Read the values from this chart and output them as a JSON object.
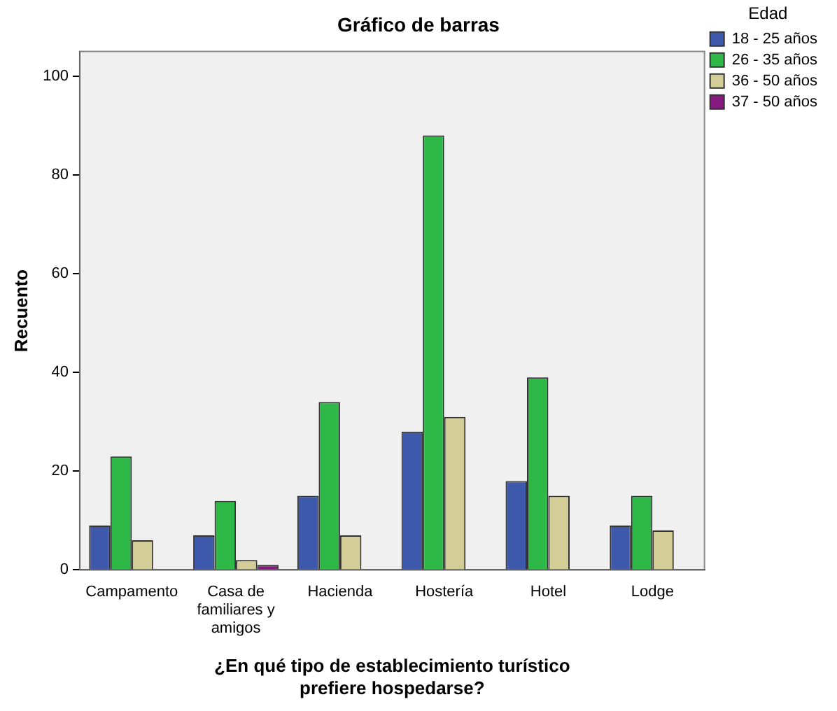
{
  "chart_data": {
    "type": "bar",
    "title": "Gráfico de barras",
    "xlabel": "¿En qué tipo de establecimiento turístico prefiere hospedarse?",
    "ylabel": "Recuento",
    "legend_title": "Edad",
    "categories": [
      "Campamento",
      "Casa de familiares y amigos",
      "Hacienda",
      "Hostería",
      "Hotel",
      "Lodge"
    ],
    "series": [
      {
        "name": "18 - 25 años",
        "color": "#3e58ac",
        "values": [
          9,
          7,
          15,
          28,
          18,
          9
        ]
      },
      {
        "name": "26 - 35 años",
        "color": "#2eb848",
        "values": [
          23,
          14,
          34,
          88,
          39,
          15
        ]
      },
      {
        "name": "36 - 50 años",
        "color": "#d3ce97",
        "values": [
          6,
          2,
          7,
          31,
          15,
          8
        ]
      },
      {
        "name": "37 - 50 años",
        "color": "#871a7e",
        "values": [
          null,
          1,
          null,
          null,
          null,
          null
        ]
      }
    ],
    "ylim": [
      0,
      105
    ],
    "yticks": [
      0,
      20,
      40,
      60,
      80,
      100
    ],
    "grid": false,
    "legend": "right"
  }
}
